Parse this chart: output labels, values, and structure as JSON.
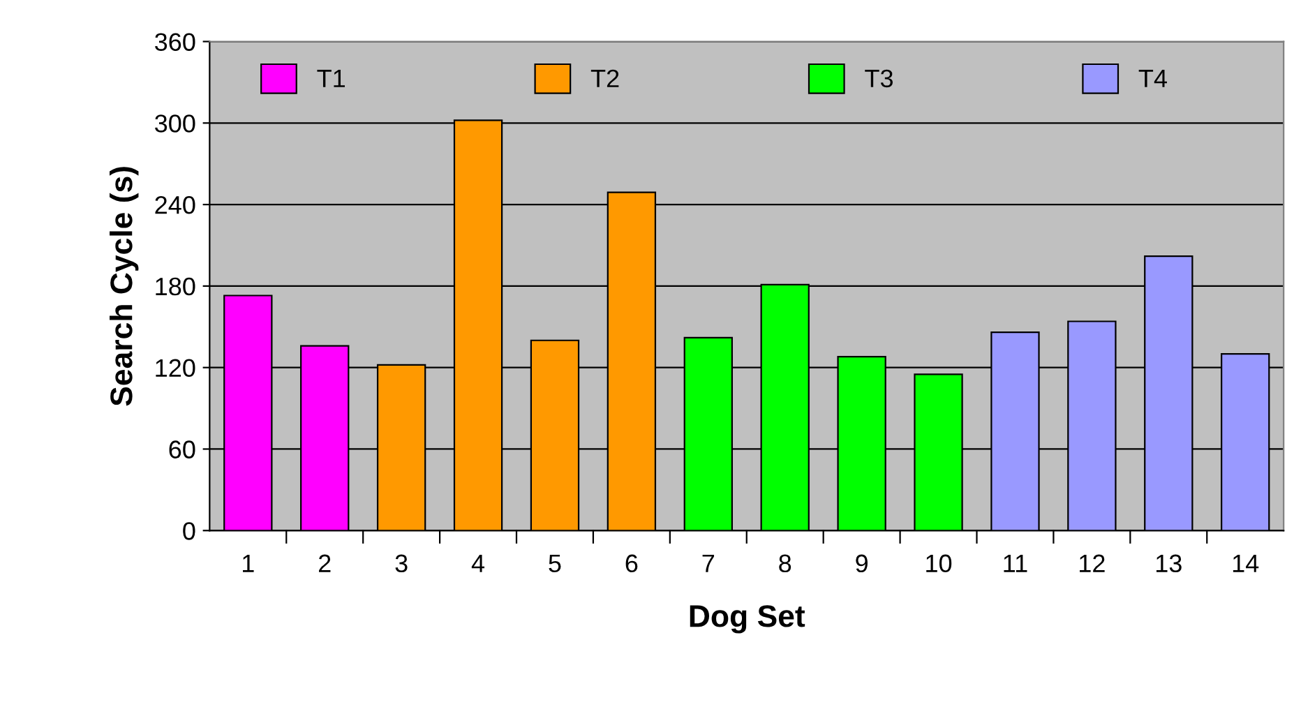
{
  "chart_data": {
    "type": "bar",
    "xlabel": "Dog Set",
    "ylabel": "Search Cycle (s)",
    "categories": [
      "1",
      "2",
      "3",
      "4",
      "5",
      "6",
      "7",
      "8",
      "9",
      "10",
      "11",
      "12",
      "13",
      "14"
    ],
    "series": [
      {
        "name": "T1",
        "color": "#ff00ff",
        "values": [
          173,
          136,
          null,
          null,
          null,
          null,
          null,
          null,
          null,
          null,
          null,
          null,
          null,
          null
        ]
      },
      {
        "name": "T2",
        "color": "#ff9900",
        "values": [
          null,
          null,
          122,
          302,
          140,
          249,
          null,
          null,
          null,
          null,
          null,
          null,
          null,
          null
        ]
      },
      {
        "name": "T3",
        "color": "#00ff00",
        "values": [
          null,
          null,
          null,
          null,
          null,
          null,
          142,
          181,
          128,
          115,
          null,
          null,
          null,
          null
        ]
      },
      {
        "name": "T4",
        "color": "#9999ff",
        "values": [
          null,
          null,
          null,
          null,
          null,
          null,
          null,
          null,
          null,
          null,
          146,
          154,
          202,
          130
        ]
      }
    ],
    "ylim": [
      0,
      360
    ],
    "yticks": [
      0,
      60,
      120,
      180,
      240,
      300,
      360
    ],
    "grid": "y",
    "legend": "top"
  }
}
